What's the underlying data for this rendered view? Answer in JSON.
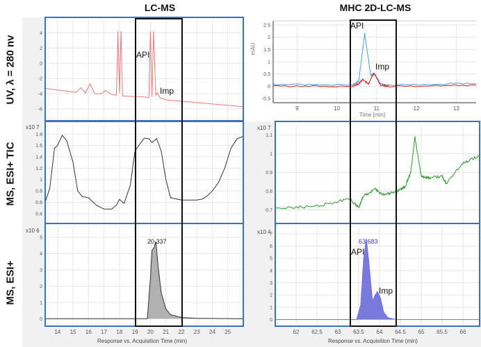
{
  "columns": [
    {
      "title": "LC-MS"
    },
    {
      "title": "MHC 2D-LC-MS"
    }
  ],
  "rows": [
    {
      "label": "UV, λ = 280 nv"
    },
    {
      "label": "MS, ESI+ TIC"
    },
    {
      "label": "MS, ESI+"
    }
  ],
  "annotations": {
    "api": "API",
    "imp": "Imp",
    "left_peak_rt": "20.337",
    "right_peak_rt": "63.683",
    "left_tic_exp": "x10 7",
    "left_ms_exp": "x10 6",
    "right_tic_exp": "x10 7",
    "right_ms_exp": "x10 4",
    "xlabel_ms": "Response vs. Acquisition Time (min)",
    "uv2d_xlabel": "Time [min]",
    "uv2d_ylabel": "mAU"
  },
  "colors": {
    "uv_lc": "#e87a7a",
    "tic_lc": "#333333",
    "eic_lc_fill": "#a8a8a8",
    "uv2d_blue": "#4a9fe0",
    "uv2d_red": "#e02020",
    "tic_2d": "#2a9a2a",
    "eic_2d": "#7070e0",
    "eic_2d_fill": "#6c6cd8",
    "panel_border": "#3a6fc4",
    "window_box": "#111111"
  },
  "chart_data": [
    {
      "type": "line",
      "title": "LC-MS UV, λ = 280 nv",
      "xlabel": "",
      "ylabel": "",
      "xlim": [
        13.2,
        26
      ],
      "ylim": [
        -7,
        5.5
      ],
      "yticks": [
        4,
        2,
        0,
        -2,
        -4,
        -6
      ],
      "series": [
        {
          "name": "UV",
          "x": [
            13.2,
            15.2,
            15.5,
            15.8,
            16.1,
            16.4,
            16.8,
            17.1,
            17.5,
            17.8,
            17.9,
            18.0,
            18.1,
            18.2,
            18.3,
            19.5,
            19.9,
            20.0,
            20.1,
            20.2,
            20.35,
            20.45,
            20.6,
            21.0,
            26
          ],
          "y": [
            -3.3,
            -3.8,
            -3.2,
            -3.9,
            -2.7,
            -4.0,
            -4.0,
            -3.6,
            -4.1,
            -4.2,
            4.2,
            -3.9,
            4.2,
            -4.3,
            -4.3,
            -4.4,
            -4.5,
            4.2,
            -4.4,
            4.2,
            -4.2,
            -3.9,
            -4.5,
            -4.8,
            -5.7
          ]
        }
      ],
      "annotations": [
        {
          "text": "API",
          "x": 19.3,
          "y": 1.6
        },
        {
          "text": "Imp",
          "x": 20.7,
          "y": -3.2
        }
      ],
      "window": [
        19.0,
        21.9
      ]
    },
    {
      "type": "line",
      "title": "MHC 2D-LC-MS UV",
      "xlabel": "Time [min]",
      "ylabel": "mAU",
      "xlim": [
        8.4,
        13.5
      ],
      "ylim": [
        -0.5,
        2.5
      ],
      "xticks": [
        9,
        10,
        11,
        12,
        13
      ],
      "yticks": [
        2.5,
        2.0,
        1.5,
        1.0,
        0.5,
        0.0,
        -0.5
      ],
      "series": [
        {
          "name": "blue",
          "x": [
            8.4,
            10.4,
            10.55,
            10.7,
            10.85,
            10.95,
            11.1,
            11.3,
            13.5
          ],
          "y": [
            0.08,
            0.05,
            0.2,
            2.15,
            0.45,
            0.5,
            0.1,
            0.05,
            0.12
          ]
        },
        {
          "name": "red",
          "x": [
            8.4,
            10.4,
            10.55,
            10.65,
            10.8,
            10.93,
            11.1,
            11.3,
            13.5
          ],
          "y": [
            0.0,
            0.0,
            0.1,
            0.28,
            0.1,
            0.55,
            0.05,
            0.0,
            0.05
          ]
        }
      ],
      "annotations": [
        {
          "text": "API",
          "x": 10.6,
          "y": 2.2
        },
        {
          "text": "Imp",
          "x": 10.95,
          "y": 0.65
        }
      ],
      "window": [
        10.3,
        11.45
      ]
    },
    {
      "type": "line",
      "title": "LC-MS MS, ESI+ TIC",
      "ylabel": "x10^7",
      "xlim": [
        13.2,
        26
      ],
      "ylim": [
        0.3,
        1.95
      ],
      "yticks": [
        1.8,
        1.6,
        1.4,
        1.2,
        1,
        0.8,
        0.6,
        0.4
      ],
      "series": [
        {
          "name": "TIC",
          "x": [
            13.2,
            13.5,
            13.8,
            14.0,
            14.3,
            14.6,
            15.0,
            15.3,
            15.6,
            16.0,
            16.5,
            17.0,
            17.5,
            17.8,
            18.0,
            18.3,
            18.7,
            19.0,
            19.3,
            19.6,
            19.9,
            20.1,
            20.4,
            20.7,
            21.0,
            21.3,
            22.0,
            23.0,
            23.4,
            23.7,
            24.0,
            24.4,
            24.8,
            25.2,
            25.6,
            26
          ],
          "y": [
            0.6,
            0.85,
            1.55,
            1.6,
            1.78,
            1.68,
            1.3,
            0.8,
            0.7,
            0.68,
            0.55,
            0.48,
            0.48,
            0.55,
            0.65,
            0.58,
            0.9,
            1.5,
            1.62,
            1.73,
            1.72,
            1.65,
            1.72,
            1.5,
            1.0,
            0.68,
            0.64,
            0.64,
            0.66,
            0.72,
            0.8,
            0.95,
            1.2,
            1.55,
            1.72,
            1.76
          ]
        }
      ],
      "window": [
        19.0,
        21.9
      ]
    },
    {
      "type": "line",
      "title": "MHC 2D-LC-MS MS, ESI+ TIC",
      "ylabel": "x10^7",
      "xlim": [
        61.5,
        66.4
      ],
      "ylim": [
        0.65,
        1.15
      ],
      "yticks": [
        1.1,
        1,
        0.9,
        0.8,
        0.7
      ],
      "series": [
        {
          "name": "TIC",
          "x": [
            61.5,
            62.5,
            63.3,
            63.5,
            63.6,
            63.9,
            64.1,
            64.4,
            64.6,
            64.75,
            64.85,
            65.0,
            65.2,
            65.5,
            65.6,
            66.0,
            66.4
          ],
          "y": [
            0.71,
            0.72,
            0.76,
            0.71,
            0.77,
            0.81,
            0.78,
            0.8,
            0.82,
            0.9,
            1.09,
            0.88,
            0.87,
            0.88,
            0.84,
            0.95,
            0.99
          ]
        }
      ],
      "window": [
        63.3,
        64.4
      ]
    },
    {
      "type": "area",
      "title": "LC-MS MS, ESI+",
      "xlabel": "Response vs. Acquisition Time (min)",
      "ylabel": "x10^6",
      "xlim": [
        13.2,
        26
      ],
      "ylim": [
        -0.2,
        5.6
      ],
      "xticks": [
        14,
        15,
        16,
        17,
        18,
        19,
        20,
        21,
        22,
        23,
        24,
        25
      ],
      "yticks": [
        5,
        4,
        3,
        2,
        1,
        0
      ],
      "series": [
        {
          "name": "EIC",
          "x": [
            13.2,
            19.8,
            20.0,
            20.1,
            20.25,
            20.35,
            20.5,
            20.7,
            21.0,
            21.3,
            22.0,
            23,
            26
          ],
          "y": [
            0,
            0,
            2.5,
            4.2,
            4.4,
            4.75,
            3.2,
            1.6,
            0.6,
            0.25,
            0.08,
            0.03,
            0
          ]
        }
      ],
      "annotations": [
        {
          "text": "20.337",
          "x": 20.337,
          "y": 4.75
        }
      ],
      "window": [
        19.0,
        21.9
      ]
    },
    {
      "type": "area",
      "title": "MHC 2D-LC-MS MS, ESI+",
      "xlabel": "Response vs. Acquisition Time (min)",
      "ylabel": "x10^4",
      "xlim": [
        61.5,
        66.4
      ],
      "ylim": [
        -0.2,
        7.5
      ],
      "xticks": [
        62,
        62.5,
        63,
        63.5,
        64,
        64.5,
        65,
        65.5,
        66
      ],
      "yticks": [
        7,
        6,
        5,
        4,
        3,
        2,
        1,
        0
      ],
      "series": [
        {
          "name": "EIC",
          "x": [
            61.5,
            63.45,
            63.55,
            63.62,
            63.683,
            63.75,
            63.83,
            63.88,
            63.95,
            64.02,
            64.1,
            64.2,
            64.4,
            66.4
          ],
          "y": [
            0,
            0,
            1.2,
            5,
            6.6,
            4.5,
            1.5,
            1.9,
            2.3,
            1.8,
            0.6,
            0.15,
            0,
            0
          ]
        }
      ],
      "annotations": [
        {
          "text": "63.683",
          "x": 63.683,
          "y": 6.6
        },
        {
          "text": "API",
          "x": 63.5,
          "y": 6.0
        },
        {
          "text": "Imp",
          "x": 64.0,
          "y": 2.8
        }
      ],
      "window": [
        63.3,
        64.4
      ]
    }
  ]
}
